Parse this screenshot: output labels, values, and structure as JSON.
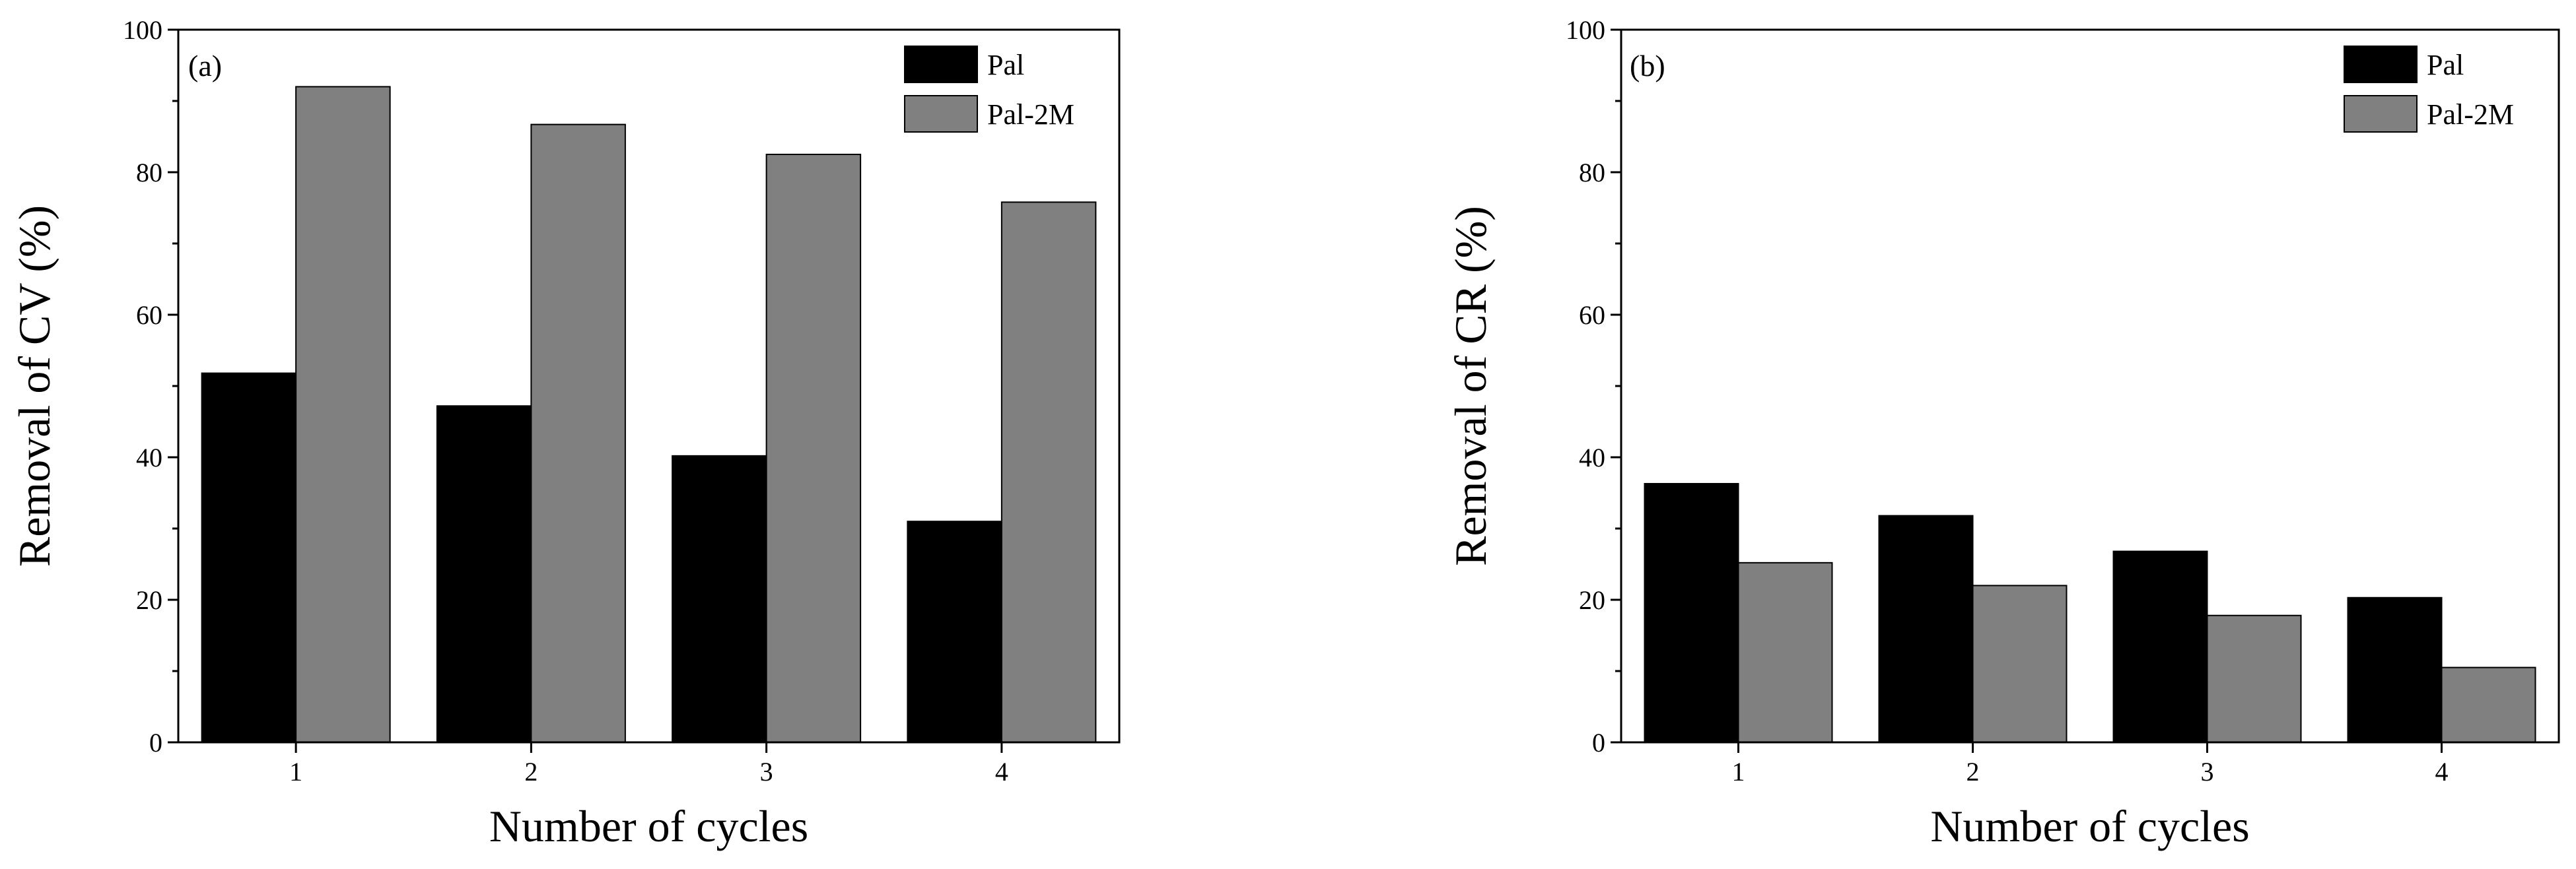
{
  "colors": {
    "pal": "#000000",
    "pal_2m": "#808080",
    "axis": "#000000",
    "background": "#ffffff"
  },
  "chart_data": [
    {
      "type": "bar",
      "panel_label": "(a)",
      "categories": [
        "1",
        "2",
        "3",
        "4"
      ],
      "series": [
        {
          "name": "Pal",
          "values": [
            51.8,
            47.2,
            40.2,
            31.0
          ]
        },
        {
          "name": "Pal-2M",
          "values": [
            92.0,
            86.7,
            82.5,
            75.8
          ]
        }
      ],
      "xlabel": "Number of cycles",
      "ylabel": "Removal of CV (%)",
      "ylim": [
        0,
        100
      ],
      "yticks": [
        "0",
        "20",
        "40",
        "60",
        "80",
        "100"
      ],
      "legend_position": "top-right",
      "grid": false
    },
    {
      "type": "bar",
      "panel_label": "(b)",
      "categories": [
        "1",
        "2",
        "3",
        "4"
      ],
      "series": [
        {
          "name": "Pal",
          "values": [
            36.3,
            31.8,
            26.8,
            20.3
          ]
        },
        {
          "name": "Pal-2M",
          "values": [
            25.2,
            22.0,
            17.8,
            10.5
          ]
        }
      ],
      "xlabel": "Number of cycles",
      "ylabel": "Removal of CR (%)",
      "ylim": [
        0,
        100
      ],
      "yticks": [
        "0",
        "20",
        "40",
        "60",
        "80",
        "100"
      ],
      "legend_position": "top-right",
      "grid": false
    }
  ]
}
